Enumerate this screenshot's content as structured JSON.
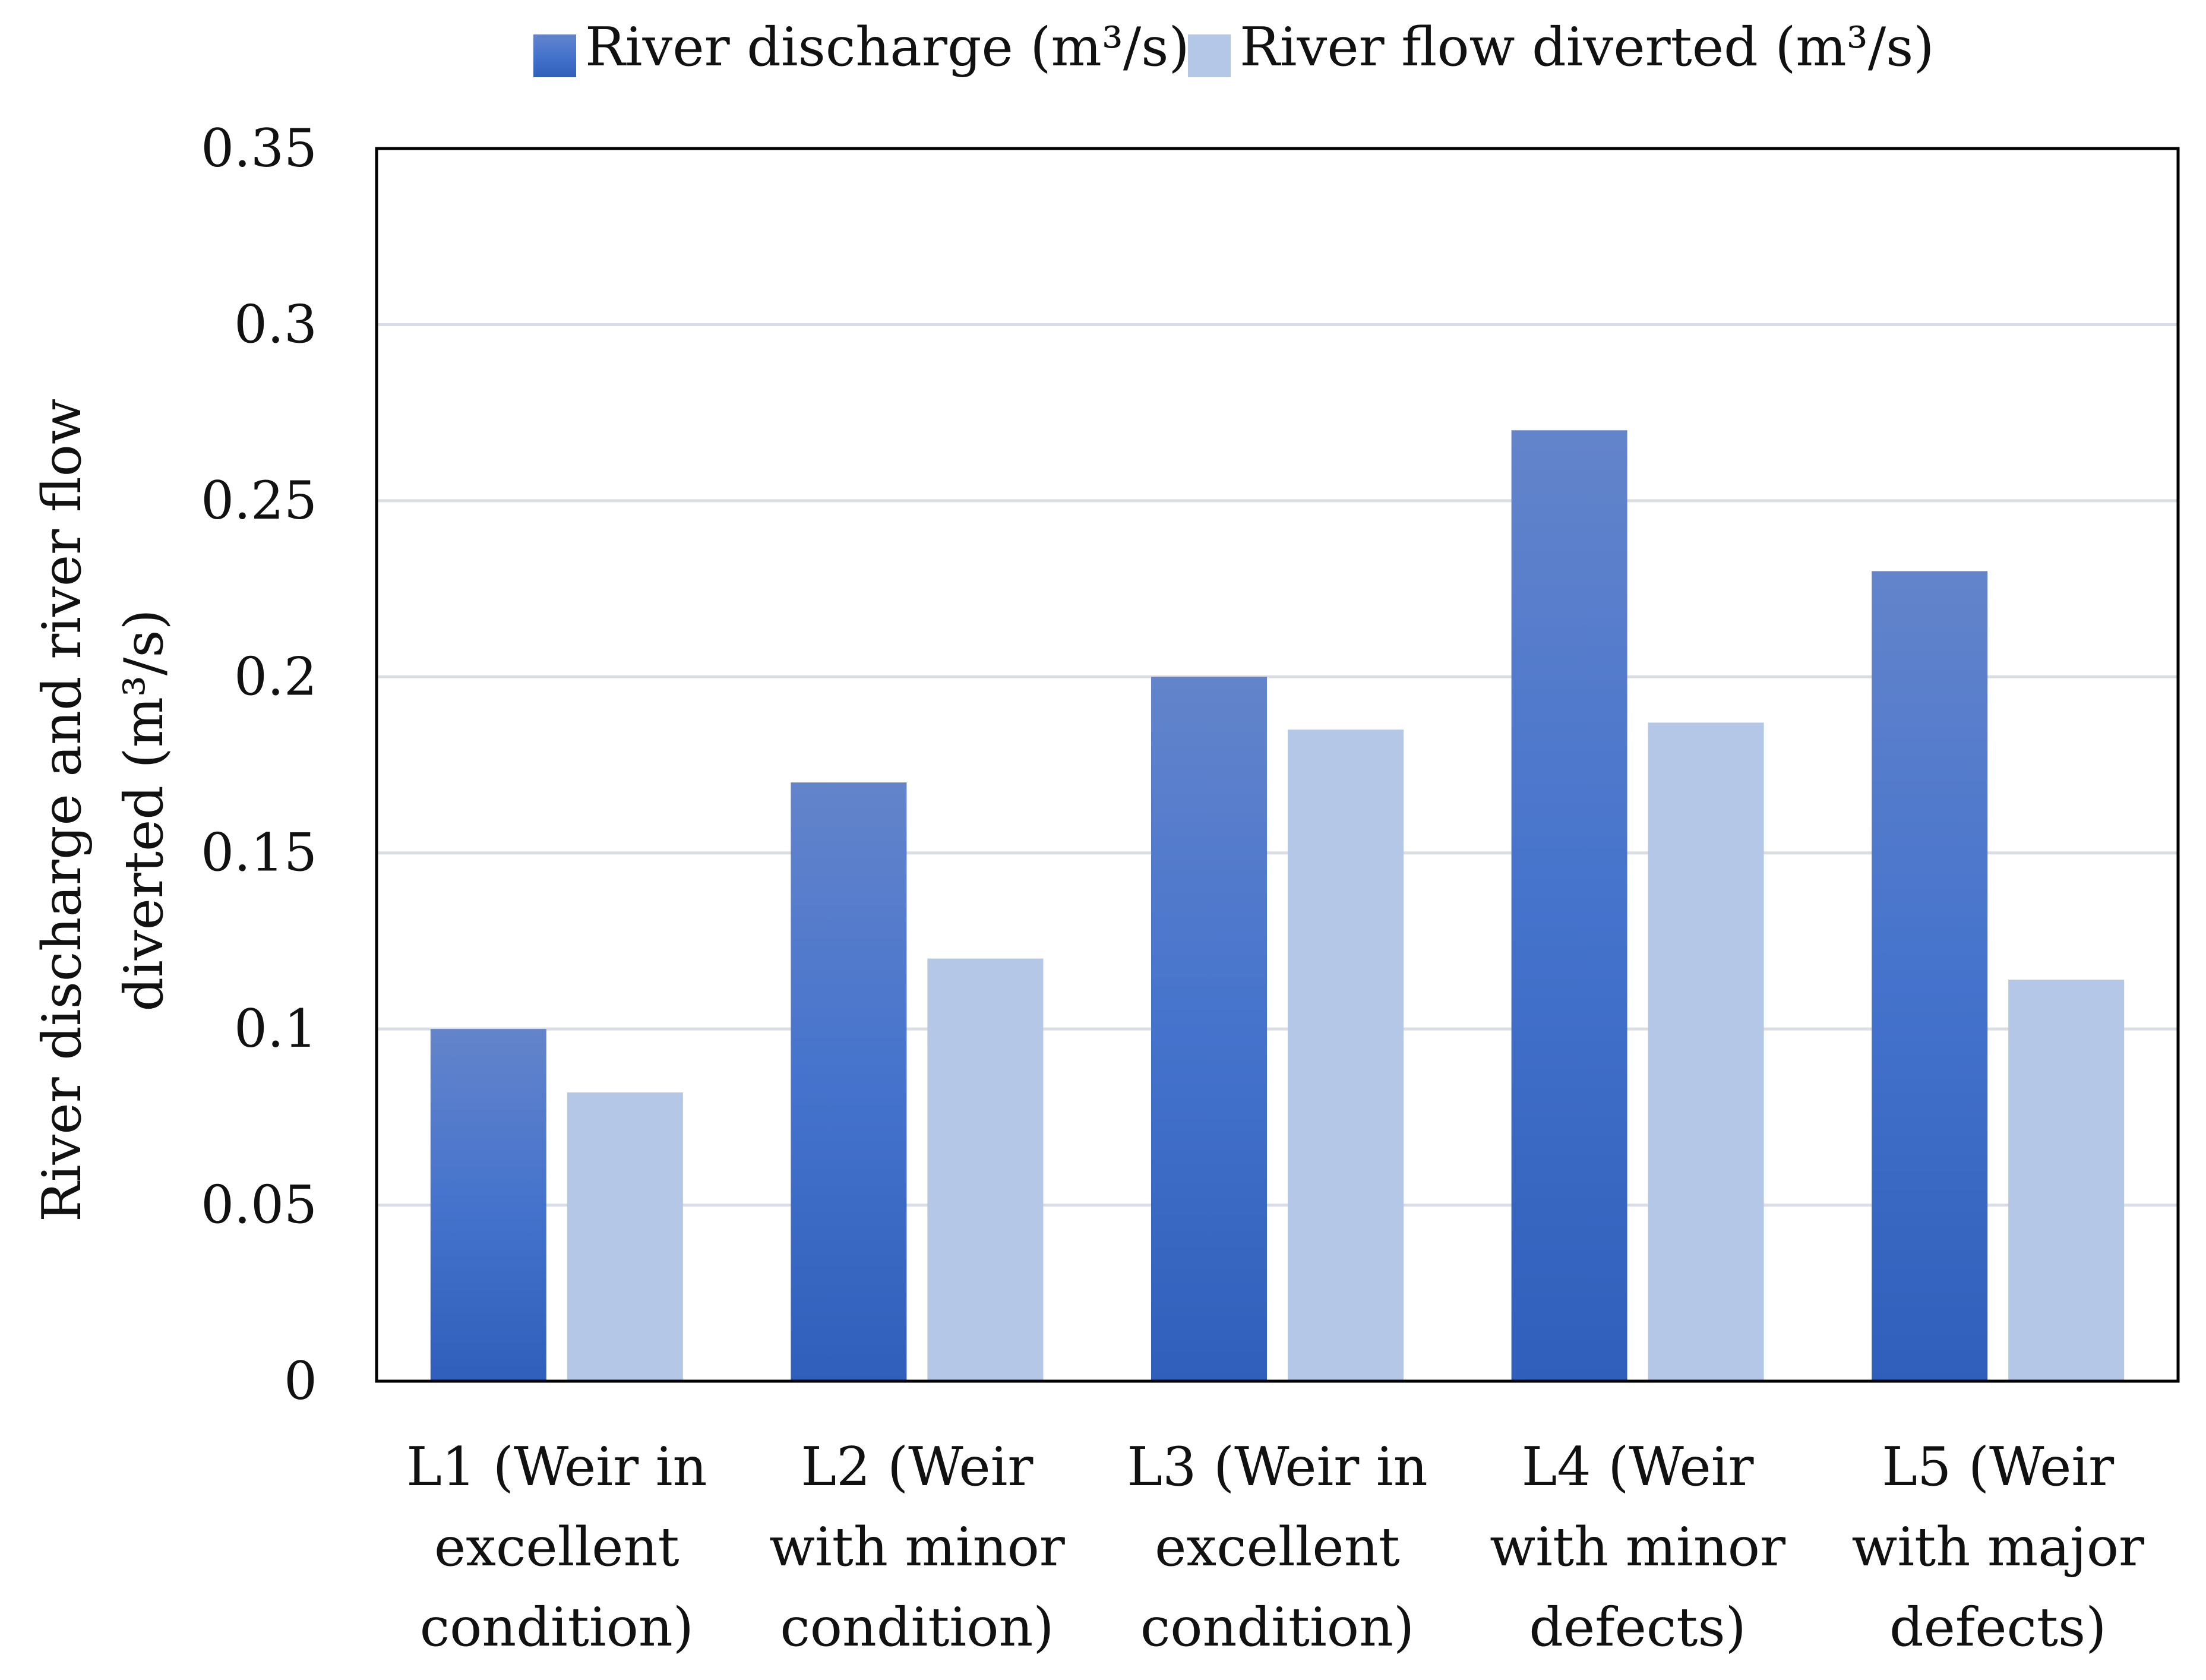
{
  "chart_data": {
    "type": "bar",
    "title": "",
    "ylabel": "River discharge and river flow diverted (m³/s)",
    "ylabel_lines": [
      "River discharge and river flow",
      "diverted (m³/s)"
    ],
    "xlabel": "",
    "ylim": [
      0,
      0.35
    ],
    "yticks": [
      0,
      0.05,
      0.1,
      0.15,
      0.2,
      0.25,
      0.3,
      0.35
    ],
    "ytick_labels": [
      "0",
      "0.05",
      "0.1",
      "0.15",
      "0.2",
      "0.25",
      "0.3",
      "0.35"
    ],
    "grid": true,
    "legend_position": "top-center",
    "categories": [
      "L1 (Weir in excellent condition)",
      "L2 (Weir with minor condition)",
      "L3 (Weir in excellent condition)",
      "L4 (Weir with minor defects)",
      "L5 (Weir with major defects)"
    ],
    "category_lines": [
      [
        "L1 (Weir in",
        "excellent",
        "condition)"
      ],
      [
        "L2 (Weir",
        "with minor",
        "condition)"
      ],
      [
        "L3 (Weir in",
        "excellent",
        "condition)"
      ],
      [
        "L4 (Weir",
        "with minor",
        "defects)"
      ],
      [
        "L5 (Weir",
        "with major",
        "defects)"
      ]
    ],
    "series": [
      {
        "name": "River discharge (m³/s)",
        "values": [
          0.1,
          0.17,
          0.2,
          0.27,
          0.23
        ],
        "color": "#4472C4"
      },
      {
        "name": "River flow diverted (m³/s)",
        "values": [
          0.082,
          0.12,
          0.185,
          0.187,
          0.114
        ],
        "color": "#B4C7E7"
      }
    ]
  }
}
